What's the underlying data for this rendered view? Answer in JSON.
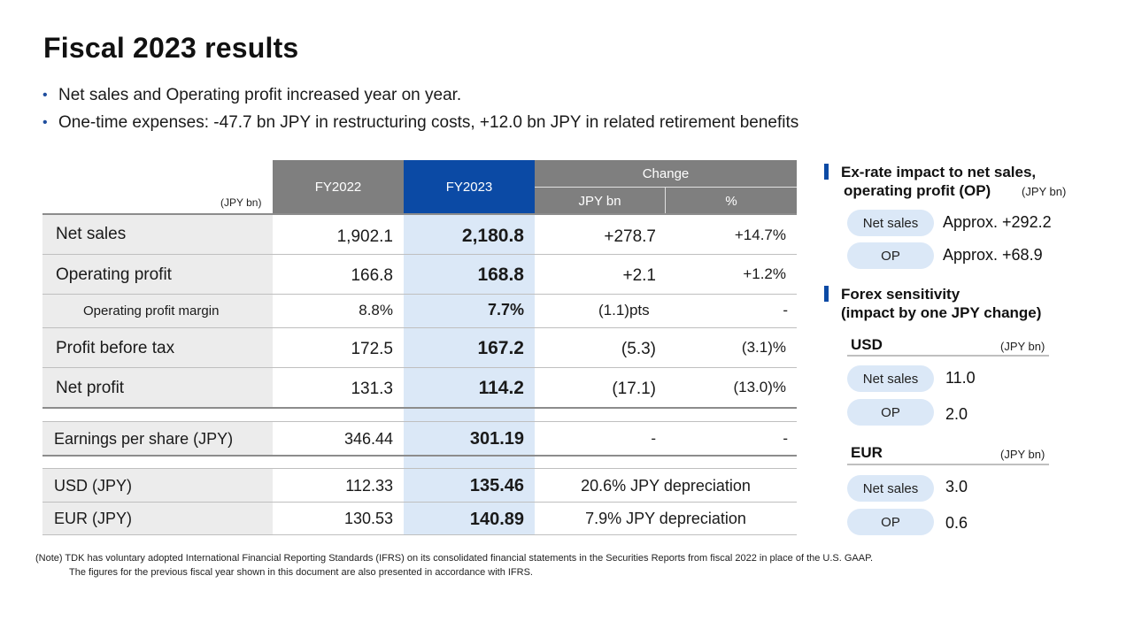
{
  "title": "Fiscal 2023 results",
  "bullets": [
    "Net sales and Operating profit increased year on year.",
    "One-time expenses: -47.7 bn JPY in restructuring costs, +12.0 bn JPY in related retirement benefits"
  ],
  "table": {
    "unit": "(JPY bn)",
    "headers": {
      "fy2022": "FY2022",
      "fy2023": "FY2023",
      "change": "Change",
      "jpy_bn": "JPY bn",
      "pct": "%"
    },
    "rows": [
      {
        "label": "Net sales",
        "fy2022": "1,902.1",
        "fy2023": "2,180.8",
        "chg": "+278.7",
        "pct": "+14.7%"
      },
      {
        "label": "Operating profit",
        "fy2022": "166.8",
        "fy2023": "168.8",
        "chg": "+2.1",
        "pct": "+1.2%"
      },
      {
        "label": "Operating profit margin",
        "fy2022": "8.8%",
        "fy2023": "7.7%",
        "chg": "(1.1)pts",
        "pct": "-"
      },
      {
        "label": "Profit before tax",
        "fy2022": "172.5",
        "fy2023": "167.2",
        "chg": "(5.3)",
        "pct": "(3.1)%"
      },
      {
        "label": "Net profit",
        "fy2022": "131.3",
        "fy2023": "114.2",
        "chg": "(17.1)",
        "pct": "(13.0)%"
      }
    ],
    "eps": {
      "label": "Earnings per share (JPY)",
      "fy2022": "346.44",
      "fy2023": "301.19",
      "chg": "-",
      "pct": "-"
    },
    "fx": [
      {
        "label": "USD (JPY)",
        "fy2022": "112.33",
        "fy2023": "135.46",
        "chg": "20.6% JPY depreciation"
      },
      {
        "label": "EUR (JPY)",
        "fy2022": "130.53",
        "fy2023": "140.89",
        "chg": "7.9% JPY depreciation"
      }
    ]
  },
  "side": {
    "exrate": {
      "title1": "Ex-rate impact to net sales,",
      "title2": "operating profit (OP)",
      "unit": "(JPY bn)",
      "items": [
        {
          "label": "Net sales",
          "value": "Approx. +292.2"
        },
        {
          "label": "OP",
          "value": "Approx. +68.9"
        }
      ]
    },
    "sensitivity": {
      "title1": "Forex sensitivity",
      "title2": "(impact by one JPY change)",
      "usd": {
        "currency": "USD",
        "unit": "(JPY bn)",
        "net_sales_label": "Net sales",
        "net_sales": "11.0",
        "op_label": "OP",
        "op": "2.0"
      },
      "eur": {
        "currency": "EUR",
        "unit": "(JPY bn)",
        "net_sales_label": "Net sales",
        "net_sales": "3.0",
        "op_label": "OP",
        "op": "0.6"
      }
    }
  },
  "notes": [
    "(Note) TDK has voluntary adopted International Financial Reporting Standards (IFRS) on its consolidated financial statements in the Securities Reports from fiscal 2022 in place of the U.S. GAAP.",
    "The figures for the previous fiscal year shown in this document are also presented in accordance with IFRS."
  ]
}
